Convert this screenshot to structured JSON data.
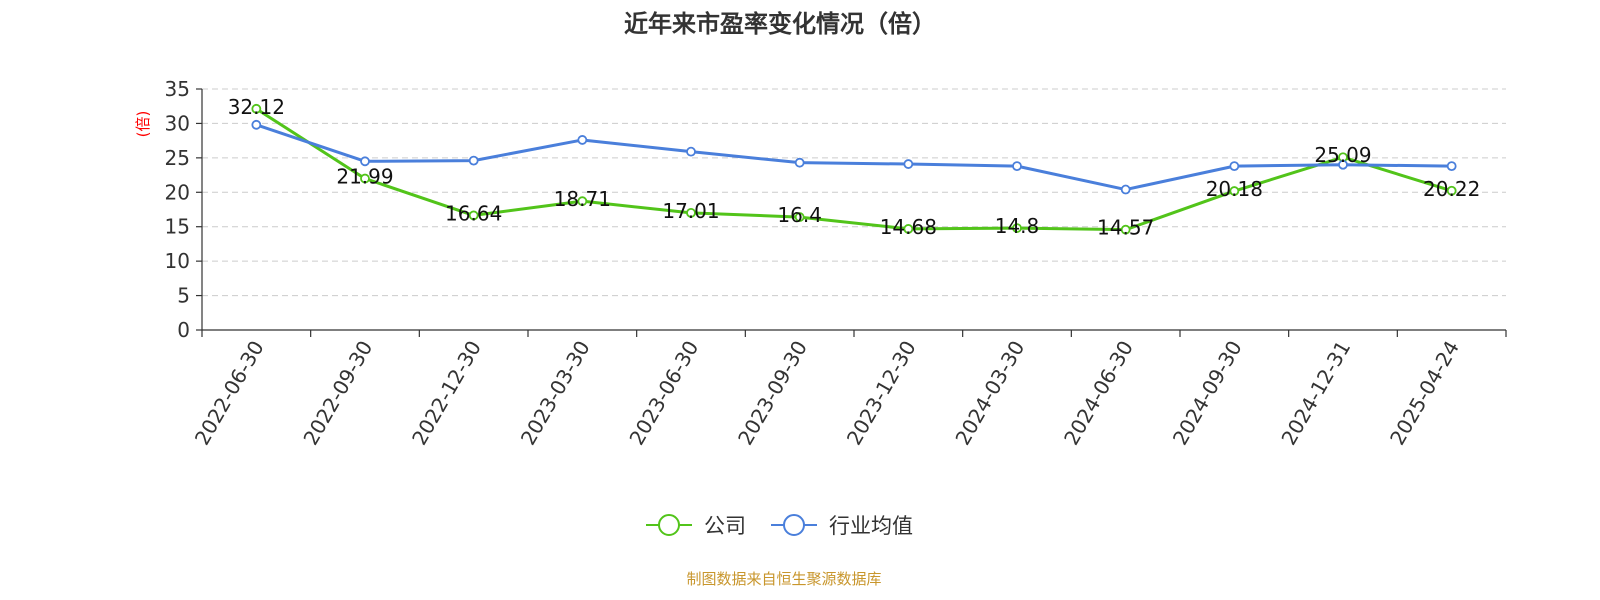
{
  "chart_data": {
    "type": "line",
    "title": "近年来市盈率变化情况（倍）",
    "ylabel": "(倍)",
    "xlabel": "",
    "ylim": [
      0,
      35
    ],
    "yticks": [
      0,
      5,
      10,
      15,
      20,
      25,
      30,
      35
    ],
    "grid": true,
    "legend_position": "bottom-center",
    "categories": [
      "2022-06-30",
      "2022-09-30",
      "2022-12-30",
      "2023-03-30",
      "2023-06-30",
      "2023-09-30",
      "2023-12-30",
      "2024-03-30",
      "2024-06-30",
      "2024-09-30",
      "2024-12-31",
      "2025-04-24"
    ],
    "series": [
      {
        "name": "公司",
        "color": "#52c41a",
        "values": [
          32.12,
          21.99,
          16.64,
          18.71,
          17.01,
          16.4,
          14.68,
          14.8,
          14.57,
          20.18,
          25.09,
          20.22
        ],
        "data_labels": [
          "32.12",
          "21.99",
          "16.64",
          "18.71",
          "17.01",
          "16.4",
          "14.68",
          "14.8",
          "14.57",
          "20.18",
          "25.09",
          "20.22"
        ]
      },
      {
        "name": "行业均值",
        "color": "#4a7fdb",
        "values": [
          29.8,
          24.5,
          24.6,
          27.6,
          25.9,
          24.3,
          24.1,
          23.8,
          20.4,
          23.8,
          24.0,
          23.8
        ]
      }
    ],
    "source": "制图数据来自恒生聚源数据库"
  }
}
